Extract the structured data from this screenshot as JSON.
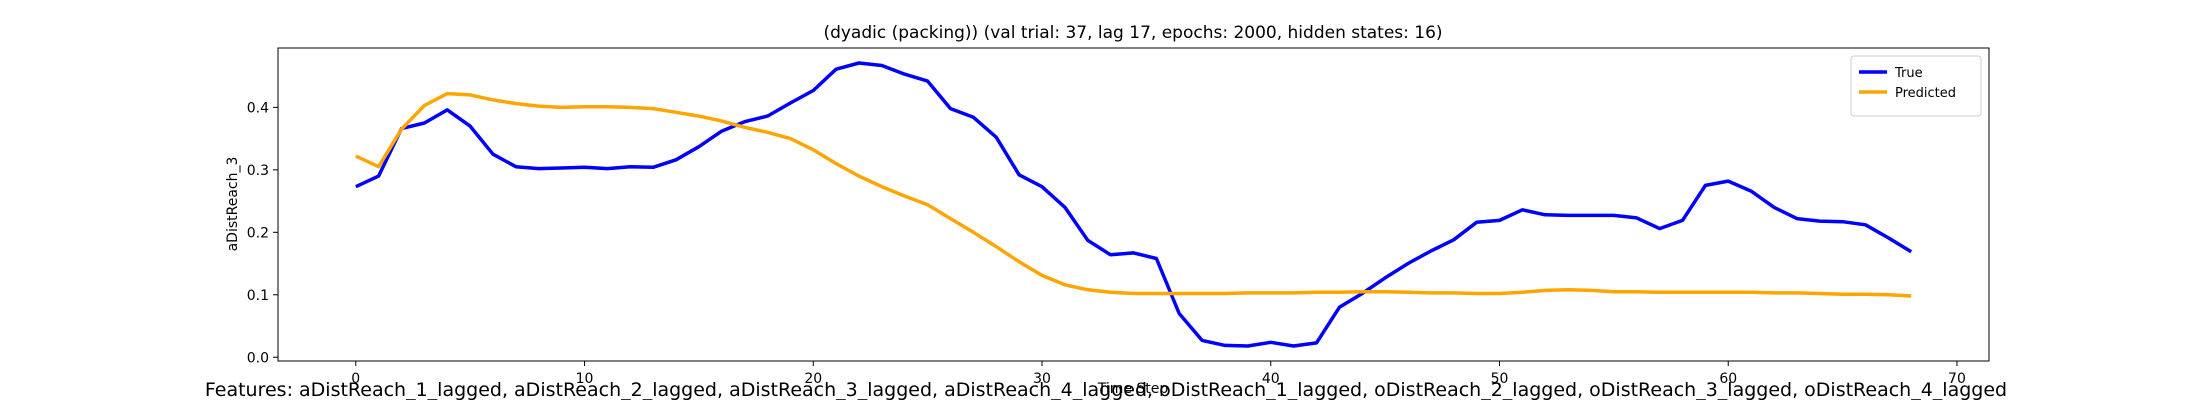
{
  "chart_data": {
    "type": "line",
    "title": "(dyadic (packing)) (val trial: 37, lag 17, epochs: 2000, hidden states: 16)",
    "x_label": "Time Step",
    "y_label": "aDistReach_3",
    "footer": "Features: aDistReach_1_lagged, aDistReach_2_lagged, aDistReach_3_lagged, aDistReach_4_lagged, oDistReach_1_lagged, oDistReach_2_lagged, oDistReach_3_lagged, oDistReach_4_lagged",
    "x": [
      0,
      1,
      2,
      3,
      4,
      5,
      6,
      7,
      8,
      9,
      10,
      11,
      12,
      13,
      14,
      15,
      16,
      17,
      18,
      19,
      20,
      21,
      22,
      23,
      24,
      25,
      26,
      27,
      28,
      29,
      30,
      31,
      32,
      33,
      34,
      35,
      36,
      37,
      38,
      39,
      40,
      41,
      42,
      43,
      44,
      45,
      46,
      47,
      48,
      49,
      50,
      51,
      52,
      53,
      54,
      55,
      56,
      57,
      58,
      59,
      60,
      61,
      62,
      63,
      64,
      65,
      66,
      67,
      68
    ],
    "series": [
      {
        "name": "True",
        "color": "#0000ff",
        "values": [
          0.273,
          0.29,
          0.366,
          0.375,
          0.396,
          0.37,
          0.325,
          0.305,
          0.302,
          0.303,
          0.304,
          0.302,
          0.305,
          0.304,
          0.316,
          0.337,
          0.362,
          0.377,
          0.386,
          0.407,
          0.427,
          0.461,
          0.471,
          0.467,
          0.453,
          0.442,
          0.398,
          0.384,
          0.352,
          0.292,
          0.273,
          0.24,
          0.187,
          0.164,
          0.167,
          0.158,
          0.07,
          0.027,
          0.019,
          0.018,
          0.024,
          0.018,
          0.023,
          0.08,
          0.102,
          0.127,
          0.15,
          0.17,
          0.188,
          0.216,
          0.219,
          0.236,
          0.228,
          0.227,
          0.227,
          0.227,
          0.223,
          0.206,
          0.219,
          0.275,
          0.282,
          0.266,
          0.24,
          0.222,
          0.218,
          0.217,
          0.212,
          0.191,
          0.169
        ]
      },
      {
        "name": "Predicted",
        "color": "#ffa500",
        "values": [
          0.322,
          0.305,
          0.365,
          0.403,
          0.422,
          0.42,
          0.412,
          0.406,
          0.402,
          0.4,
          0.401,
          0.401,
          0.4,
          0.398,
          0.392,
          0.386,
          0.378,
          0.368,
          0.36,
          0.35,
          0.332,
          0.31,
          0.29,
          0.273,
          0.258,
          0.244,
          0.222,
          0.2,
          0.177,
          0.153,
          0.131,
          0.116,
          0.108,
          0.104,
          0.102,
          0.102,
          0.102,
          0.102,
          0.102,
          0.103,
          0.103,
          0.103,
          0.104,
          0.104,
          0.105,
          0.105,
          0.104,
          0.103,
          0.103,
          0.102,
          0.102,
          0.104,
          0.107,
          0.108,
          0.107,
          0.105,
          0.105,
          0.104,
          0.104,
          0.104,
          0.104,
          0.104,
          0.103,
          0.103,
          0.102,
          0.101,
          0.101,
          0.1,
          0.098
        ]
      }
    ],
    "xlim": [
      -3.4,
      71.4
    ],
    "xticks": [
      0,
      10,
      20,
      30,
      40,
      50,
      60,
      70
    ],
    "ylim": [
      -0.006,
      0.495
    ],
    "yticks": [
      {
        "value": 0,
        "label": "0.0"
      },
      0.1,
      0.2,
      0.3,
      0.4
    ],
    "legend": "upper right",
    "grid": false
  }
}
